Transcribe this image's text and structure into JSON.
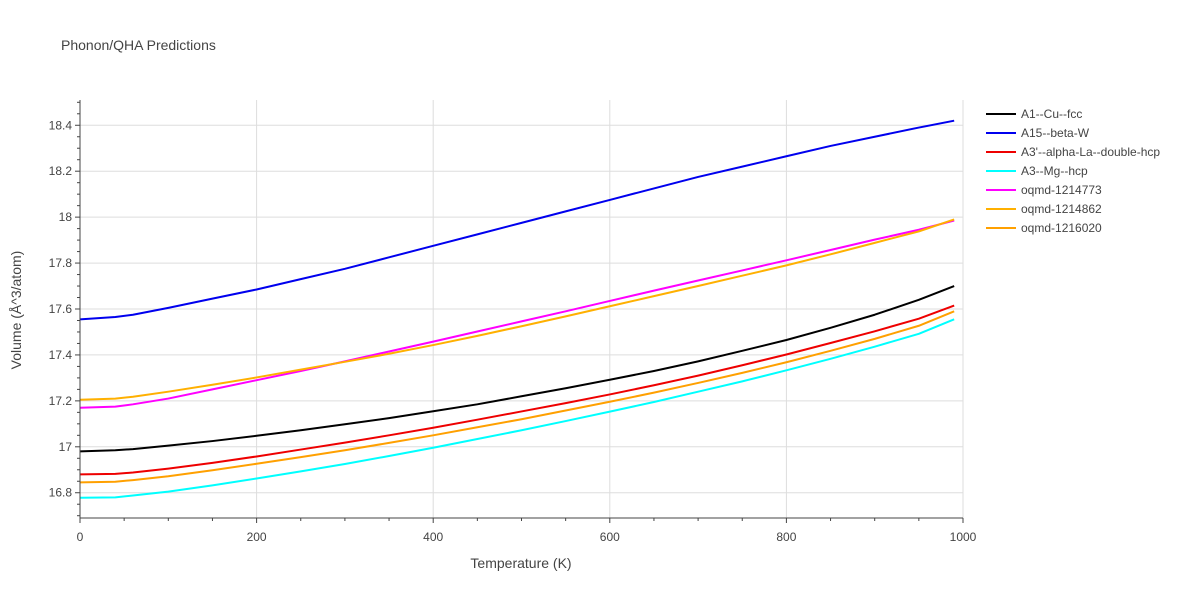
{
  "chart_data": {
    "type": "line",
    "title": "Phonon/QHA Predictions",
    "xlabel": "Temperature (K)",
    "ylabel": "Volume (Å^3/atom)",
    "xlim": [
      0,
      1000
    ],
    "ylim": [
      16.69,
      18.51
    ],
    "xticks": [
      0,
      200,
      400,
      600,
      800,
      1000
    ],
    "xtick_labels": [
      "0",
      "200",
      "400",
      "600",
      "800",
      "1000"
    ],
    "yticks": [
      16.8,
      17.0,
      17.2,
      17.4,
      17.6,
      17.8,
      18.0,
      18.2,
      18.4
    ],
    "ytick_labels": [
      "16.8",
      "17",
      "17.2",
      "17.4",
      "17.6",
      "17.8",
      "18",
      "18.2",
      "18.4"
    ],
    "grid": true,
    "legend_position": "top-right",
    "x": [
      0,
      40,
      60,
      100,
      150,
      200,
      250,
      300,
      350,
      400,
      450,
      500,
      550,
      600,
      650,
      700,
      750,
      800,
      850,
      900,
      950,
      990
    ],
    "series": [
      {
        "name": "A1--Cu--fcc",
        "color": "#000000",
        "values": [
          16.98,
          16.985,
          16.99,
          17.005,
          17.025,
          17.048,
          17.072,
          17.098,
          17.125,
          17.155,
          17.185,
          17.22,
          17.255,
          17.292,
          17.33,
          17.372,
          17.418,
          17.465,
          17.518,
          17.575,
          17.64,
          17.7
        ]
      },
      {
        "name": "A15--beta-W",
        "color": "#0000ee",
        "values": [
          17.555,
          17.565,
          17.575,
          17.605,
          17.645,
          17.685,
          17.73,
          17.775,
          17.825,
          17.875,
          17.925,
          17.975,
          18.025,
          18.075,
          18.125,
          18.175,
          18.22,
          18.265,
          18.31,
          18.35,
          18.39,
          18.42
        ]
      },
      {
        "name": "A3'--alpha-La--double-hcp",
        "color": "#ee0000",
        "values": [
          16.88,
          16.882,
          16.888,
          16.905,
          16.93,
          16.958,
          16.988,
          17.018,
          17.05,
          17.083,
          17.118,
          17.154,
          17.19,
          17.228,
          17.268,
          17.31,
          17.355,
          17.402,
          17.452,
          17.503,
          17.558,
          17.615
        ]
      },
      {
        "name": "A3--Mg--hcp",
        "color": "#00ffff",
        "values": [
          16.778,
          16.78,
          16.788,
          16.805,
          16.832,
          16.862,
          16.893,
          16.925,
          16.96,
          16.996,
          17.034,
          17.072,
          17.112,
          17.153,
          17.195,
          17.24,
          17.285,
          17.333,
          17.383,
          17.436,
          17.492,
          17.555
        ]
      },
      {
        "name": "oqmd-1214773",
        "color": "#ff00ff",
        "values": [
          17.17,
          17.175,
          17.185,
          17.21,
          17.25,
          17.29,
          17.33,
          17.372,
          17.415,
          17.458,
          17.502,
          17.546,
          17.59,
          17.635,
          17.68,
          17.724,
          17.768,
          17.812,
          17.857,
          17.902,
          17.945,
          17.985
        ]
      },
      {
        "name": "oqmd-1214862",
        "color": "#ffb000",
        "values": [
          17.205,
          17.21,
          17.218,
          17.24,
          17.27,
          17.302,
          17.336,
          17.37,
          17.405,
          17.443,
          17.483,
          17.525,
          17.568,
          17.612,
          17.656,
          17.7,
          17.745,
          17.79,
          17.838,
          17.888,
          17.938,
          17.99
        ]
      },
      {
        "name": "oqmd-1216020",
        "color": "#ffa000",
        "values": [
          16.845,
          16.848,
          16.855,
          16.872,
          16.898,
          16.926,
          16.955,
          16.985,
          17.017,
          17.05,
          17.085,
          17.12,
          17.158,
          17.196,
          17.236,
          17.278,
          17.322,
          17.368,
          17.418,
          17.47,
          17.527,
          17.59
        ]
      }
    ]
  }
}
